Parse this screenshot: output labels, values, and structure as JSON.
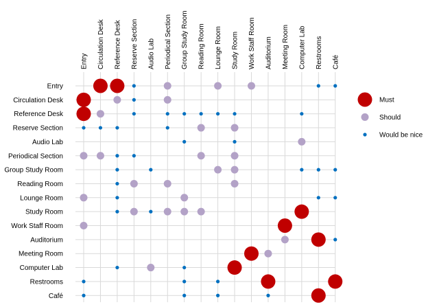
{
  "chart_data": {
    "type": "scatter",
    "subtype": "adjacency-matrix bubble chart",
    "columns": [
      "Entry",
      "Circulation Desk",
      "Reference Desk",
      "Reserve Section",
      "Audio Lab",
      "Periodical Section",
      "Group Study Room",
      "Reading Room",
      "Lounge Room",
      "Study Room",
      "Work Staff Room",
      "Auditorium",
      "Meeting Room",
      "Computer Lab",
      "Restrooms",
      "Café"
    ],
    "rows": [
      "Entry",
      "Circulation Desk",
      "Reference Desk",
      "Reserve Section",
      "Audio Lab",
      "Periodical Section",
      "Group Study Room",
      "Reading Room",
      "Lounge Room",
      "Study Room",
      "Work Staff Room",
      "Auditorium ",
      "Meeting Room",
      "Computer Lab",
      "Restrooms",
      "Café"
    ],
    "levels": [
      {
        "value": 3,
        "name": "Must",
        "color": "#C00000"
      },
      {
        "value": 2,
        "name": "Should",
        "color": "#B3A2C7"
      },
      {
        "value": 1,
        "name": "Would be nice",
        "color": "#0070C0"
      }
    ],
    "matrix": [
      [
        0,
        3,
        3,
        1,
        0,
        2,
        0,
        0,
        2,
        0,
        2,
        0,
        0,
        0,
        1,
        1
      ],
      [
        3,
        0,
        2,
        1,
        0,
        2,
        0,
        0,
        0,
        0,
        0,
        0,
        0,
        0,
        0,
        0
      ],
      [
        3,
        2,
        0,
        1,
        0,
        1,
        1,
        1,
        1,
        1,
        0,
        0,
        0,
        1,
        0,
        0
      ],
      [
        1,
        1,
        1,
        0,
        0,
        1,
        0,
        2,
        0,
        2,
        0,
        0,
        0,
        0,
        0,
        0
      ],
      [
        0,
        0,
        0,
        0,
        0,
        0,
        1,
        0,
        0,
        1,
        0,
        0,
        0,
        2,
        0,
        0
      ],
      [
        2,
        2,
        1,
        1,
        0,
        0,
        0,
        2,
        0,
        2,
        0,
        0,
        0,
        0,
        0,
        0
      ],
      [
        0,
        0,
        1,
        0,
        1,
        0,
        0,
        0,
        2,
        2,
        0,
        0,
        0,
        1,
        1,
        1
      ],
      [
        0,
        0,
        1,
        2,
        0,
        2,
        0,
        0,
        0,
        2,
        0,
        0,
        0,
        0,
        0,
        0
      ],
      [
        2,
        0,
        1,
        0,
        0,
        0,
        2,
        0,
        0,
        0,
        0,
        0,
        0,
        0,
        1,
        1
      ],
      [
        0,
        0,
        1,
        2,
        1,
        2,
        2,
        2,
        0,
        0,
        0,
        0,
        0,
        3,
        0,
        0
      ],
      [
        2,
        0,
        0,
        0,
        0,
        0,
        0,
        0,
        0,
        0,
        0,
        0,
        3,
        0,
        0,
        0
      ],
      [
        0,
        0,
        0,
        0,
        0,
        0,
        0,
        0,
        0,
        0,
        0,
        0,
        2,
        0,
        3,
        1
      ],
      [
        0,
        0,
        0,
        0,
        0,
        0,
        0,
        0,
        0,
        0,
        3,
        2,
        0,
        0,
        0,
        0
      ],
      [
        0,
        0,
        1,
        0,
        2,
        0,
        1,
        0,
        0,
        3,
        0,
        0,
        0,
        0,
        0,
        0
      ],
      [
        1,
        0,
        0,
        0,
        0,
        0,
        1,
        0,
        1,
        0,
        0,
        3,
        0,
        0,
        0,
        3
      ],
      [
        1,
        0,
        0,
        0,
        0,
        0,
        1,
        0,
        1,
        0,
        0,
        1,
        0,
        0,
        3,
        0
      ]
    ],
    "grid": true,
    "legend_position": "right"
  }
}
